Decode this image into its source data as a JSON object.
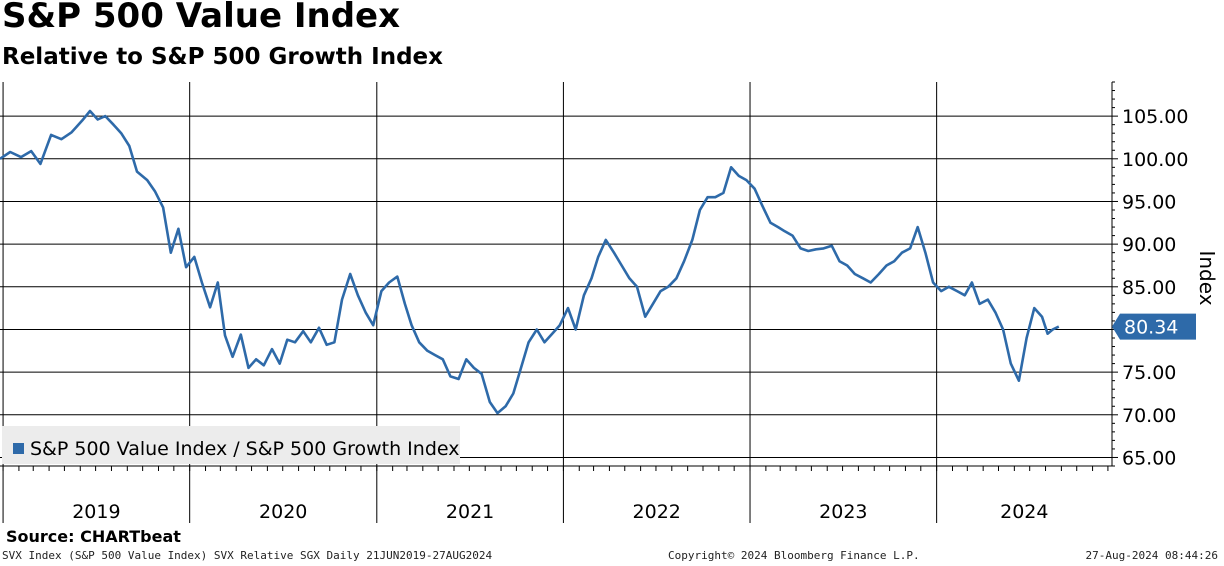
{
  "title": "S&P 500 Value Index",
  "subtitle": "Relative to S&P 500 Growth Index",
  "source": "Source: CHARTbeat",
  "footer": {
    "left": "SVX Index (S&P 500 Value Index) SVX Relative SGX  Daily 21JUN2019-27AUG2024",
    "center": "Copyright© 2024 Bloomberg Finance L.P.",
    "right": "27-Aug-2024 08:44:26"
  },
  "colors": {
    "series": "#2e6aa9",
    "grid": "#000000",
    "label_bg": "#2e6aa9"
  },
  "chart_data": {
    "type": "line",
    "title": "S&P 500 Value Index",
    "subtitle": "Relative to S&P 500 Growth Index",
    "ylabel": "Index",
    "ylim": [
      64,
      109
    ],
    "y_ticks": [
      65,
      70,
      75,
      80,
      85,
      90,
      95,
      100,
      105
    ],
    "y_tick_labels": [
      "65.00",
      "70.00",
      "75.00",
      "80.00",
      "85.00",
      "90.00",
      "95.00",
      "100.00",
      "105.00"
    ],
    "y_axis_side": "right",
    "x_range": [
      "2018-12-26",
      "2024-12-09"
    ],
    "x_year_labels": [
      "2019",
      "2020",
      "2021",
      "2022",
      "2023",
      "2024"
    ],
    "grid": true,
    "legend_placement": "bottom-left",
    "last_value_label": "80.34",
    "series": [
      {
        "name": "S&P 500 Value Index / S&P 500 Growth Index",
        "x": [
          "2018-12-26",
          "2019-01-15",
          "2019-02-05",
          "2019-02-25",
          "2019-03-15",
          "2019-04-05",
          "2019-04-25",
          "2019-05-15",
          "2019-06-05",
          "2019-06-20",
          "2019-07-05",
          "2019-07-20",
          "2019-08-05",
          "2019-08-20",
          "2019-09-05",
          "2019-09-20",
          "2019-10-10",
          "2019-10-25",
          "2019-11-10",
          "2019-11-25",
          "2019-12-10",
          "2019-12-25",
          "2020-01-10",
          "2020-01-25",
          "2020-02-10",
          "2020-02-25",
          "2020-03-10",
          "2020-03-25",
          "2020-04-10",
          "2020-04-25",
          "2020-05-10",
          "2020-05-25",
          "2020-06-10",
          "2020-06-25",
          "2020-07-10",
          "2020-07-25",
          "2020-08-10",
          "2020-08-25",
          "2020-09-10",
          "2020-09-25",
          "2020-10-10",
          "2020-10-25",
          "2020-11-10",
          "2020-11-25",
          "2020-12-10",
          "2020-12-25",
          "2021-01-10",
          "2021-01-25",
          "2021-02-10",
          "2021-02-25",
          "2021-03-10",
          "2021-03-25",
          "2021-04-10",
          "2021-04-25",
          "2021-05-10",
          "2021-05-25",
          "2021-06-10",
          "2021-06-25",
          "2021-07-10",
          "2021-07-25",
          "2021-08-10",
          "2021-08-25",
          "2021-09-10",
          "2021-09-25",
          "2021-10-10",
          "2021-10-25",
          "2021-11-10",
          "2021-11-25",
          "2021-12-10",
          "2021-12-25",
          "2022-01-10",
          "2022-01-25",
          "2022-02-10",
          "2022-02-25",
          "2022-03-10",
          "2022-03-25",
          "2022-04-10",
          "2022-04-25",
          "2022-05-10",
          "2022-05-25",
          "2022-06-10",
          "2022-06-25",
          "2022-07-10",
          "2022-07-25",
          "2022-08-10",
          "2022-08-25",
          "2022-09-10",
          "2022-09-25",
          "2022-10-10",
          "2022-10-25",
          "2022-11-10",
          "2022-11-25",
          "2022-12-10",
          "2022-12-25",
          "2023-01-10",
          "2023-01-25",
          "2023-02-10",
          "2023-02-25",
          "2023-03-10",
          "2023-03-25",
          "2023-04-10",
          "2023-04-25",
          "2023-05-10",
          "2023-05-25",
          "2023-06-10",
          "2023-06-25",
          "2023-07-10",
          "2023-07-25",
          "2023-08-10",
          "2023-08-25",
          "2023-09-10",
          "2023-09-25",
          "2023-10-10",
          "2023-10-25",
          "2023-11-10",
          "2023-11-25",
          "2023-12-10",
          "2023-12-25",
          "2024-01-10",
          "2024-01-25",
          "2024-02-10",
          "2024-02-25",
          "2024-03-10",
          "2024-03-25",
          "2024-04-10",
          "2024-04-25",
          "2024-05-10",
          "2024-05-25",
          "2024-06-10",
          "2024-06-25",
          "2024-07-10",
          "2024-07-25",
          "2024-08-05",
          "2024-08-15",
          "2024-08-27"
        ],
        "values": [
          100.0,
          100.8,
          100.2,
          100.9,
          99.4,
          102.8,
          102.3,
          103.1,
          104.5,
          105.6,
          104.6,
          105.0,
          104.0,
          103.0,
          101.5,
          98.5,
          97.5,
          96.2,
          94.3,
          89.0,
          91.8,
          87.3,
          88.5,
          85.5,
          82.6,
          85.5,
          79.3,
          76.8,
          79.4,
          75.5,
          76.5,
          75.8,
          77.7,
          76.0,
          78.8,
          78.5,
          79.8,
          78.5,
          80.2,
          78.2,
          78.5,
          83.5,
          86.5,
          84.0,
          82.0,
          80.5,
          84.5,
          85.5,
          86.2,
          83.0,
          80.5,
          78.5,
          77.5,
          77.0,
          76.5,
          74.5,
          74.2,
          76.5,
          75.5,
          74.8,
          71.5,
          70.2,
          71.0,
          72.5,
          75.5,
          78.5,
          80.0,
          78.5,
          79.5,
          80.5,
          82.5,
          80.0,
          84.0,
          86.0,
          88.5,
          90.5,
          89.0,
          87.5,
          86.0,
          85.0,
          81.5,
          83.0,
          84.5,
          85.0,
          86.0,
          88.0,
          90.5,
          94.0,
          95.5,
          95.5,
          96.0,
          99.0,
          98.0,
          97.5,
          96.5,
          94.5,
          92.5,
          92.0,
          91.5,
          91.0,
          89.5,
          89.2,
          89.4,
          89.5,
          89.8,
          88.0,
          87.5,
          86.5,
          86.0,
          85.5,
          86.5,
          87.5,
          88.0,
          89.0,
          89.5,
          92.0,
          89.0,
          85.5,
          84.5,
          85.0,
          84.5,
          84.0,
          85.5,
          83.0,
          83.5,
          82.0,
          80.0,
          76.0,
          74.0,
          79.0,
          82.5,
          81.5,
          79.5,
          80.0,
          80.34
        ]
      }
    ]
  }
}
